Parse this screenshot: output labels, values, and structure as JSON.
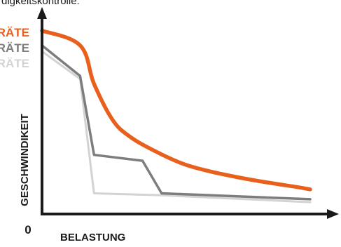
{
  "header_text": "digkeitskontrolle:",
  "chart_data": {
    "type": "line",
    "title": "",
    "xlabel": "BELASTUNG",
    "ylabel": "GESCHWINDIKEIT",
    "origin_label": "0",
    "x_unit": "fraction of axis length (unlabeled axis)",
    "y_unit": "fraction of axis height (unlabeled axis)",
    "xlim": [
      0,
      1
    ],
    "ylim": [
      0,
      1
    ],
    "grid": false,
    "legend_position": "top-left (cropped)",
    "series": [
      {
        "name": "ERÄTE",
        "color": "#e8601c",
        "curve": "smooth",
        "points": [
          [
            0.0,
            0.93
          ],
          [
            0.142,
            0.855
          ],
          [
            0.194,
            0.66
          ],
          [
            0.262,
            0.48
          ],
          [
            0.325,
            0.395
          ],
          [
            0.42,
            0.32
          ],
          [
            0.525,
            0.255
          ],
          [
            0.63,
            0.215
          ],
          [
            0.735,
            0.185
          ],
          [
            0.84,
            0.16
          ],
          [
            0.945,
            0.138
          ],
          [
            1.0,
            0.125
          ]
        ]
      },
      {
        "name": "ERÄTE",
        "color": "#7d7d7d",
        "curve": "linear",
        "points": [
          [
            0.0,
            0.855
          ],
          [
            0.142,
            0.7
          ],
          [
            0.194,
            0.3
          ],
          [
            0.375,
            0.27
          ],
          [
            0.446,
            0.105
          ],
          [
            1.0,
            0.075
          ]
        ]
      },
      {
        "name": "ERÄTE",
        "color": "#d3d3d3",
        "curve": "linear",
        "points": [
          [
            0.0,
            0.825
          ],
          [
            0.142,
            0.685
          ],
          [
            0.194,
            0.105
          ],
          [
            0.446,
            0.095
          ],
          [
            1.0,
            0.06
          ]
        ]
      }
    ]
  }
}
